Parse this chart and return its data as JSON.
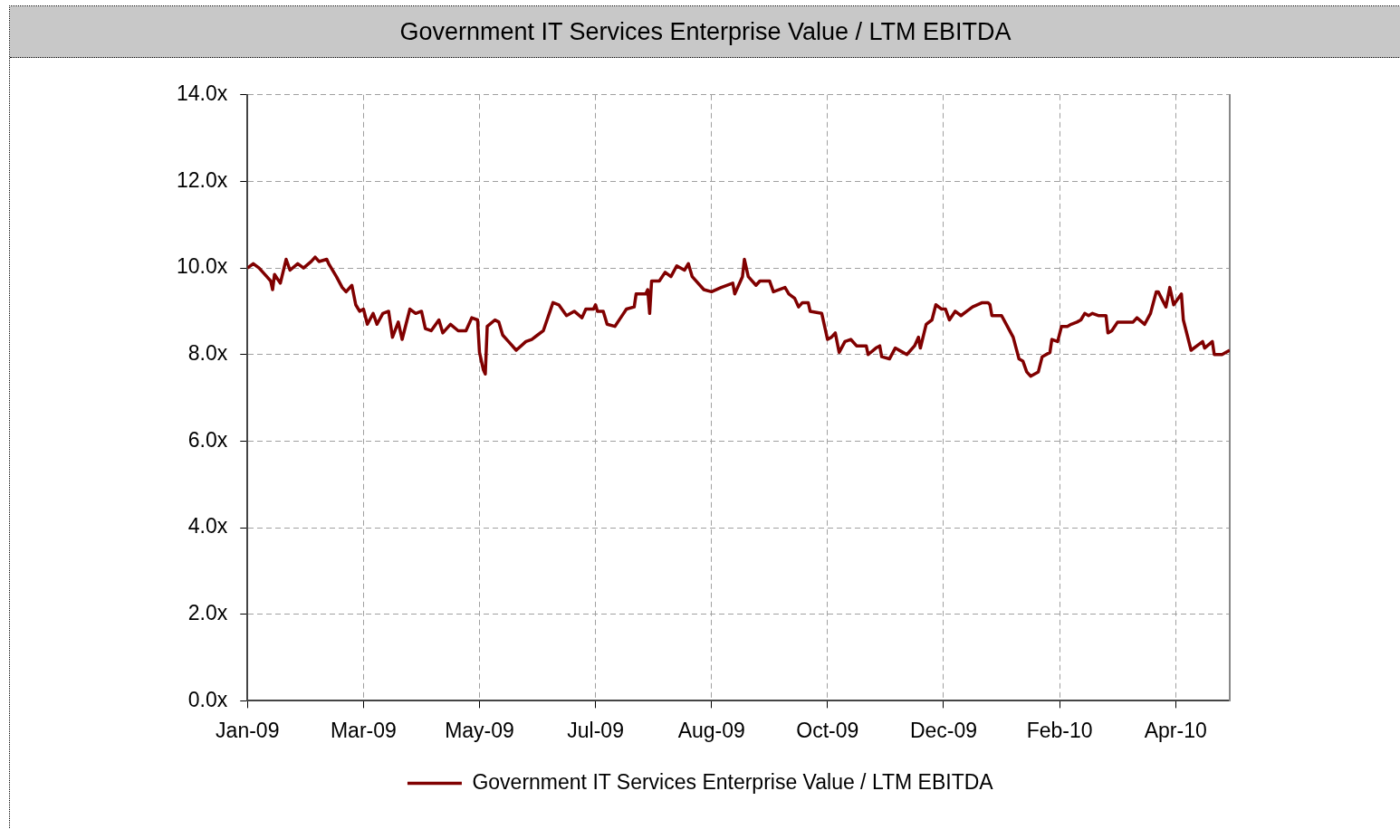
{
  "chart_data": {
    "type": "line",
    "title": "Government IT Services Enterprise Value / LTM EBITDA",
    "x": [
      "2009-01-02",
      "2009-01-05",
      "2009-01-08",
      "2009-01-12",
      "2009-01-14",
      "2009-01-15",
      "2009-01-16",
      "2009-01-19",
      "2009-01-22",
      "2009-01-24",
      "2009-01-28",
      "2009-01-31",
      "2009-02-04",
      "2009-02-06",
      "2009-02-08",
      "2009-02-12",
      "2009-02-13",
      "2009-02-17",
      "2009-02-20",
      "2009-02-22",
      "2009-02-25",
      "2009-02-27",
      "2009-03-01",
      "2009-03-03",
      "2009-03-05",
      "2009-03-08",
      "2009-03-10",
      "2009-03-13",
      "2009-03-16",
      "2009-03-18",
      "2009-03-21",
      "2009-03-23",
      "2009-03-27",
      "2009-03-30",
      "2009-04-02",
      "2009-04-04",
      "2009-04-07",
      "2009-04-11",
      "2009-04-13",
      "2009-04-17",
      "2009-04-21",
      "2009-04-25",
      "2009-04-28",
      "2009-05-01",
      "2009-05-02",
      "2009-05-04",
      "2009-05-05",
      "2009-05-06",
      "2009-05-10",
      "2009-05-12",
      "2009-05-14",
      "2009-05-17",
      "2009-05-21",
      "2009-05-26",
      "2009-05-29",
      "2009-06-01",
      "2009-06-04",
      "2009-06-09",
      "2009-06-12",
      "2009-06-16",
      "2009-06-20",
      "2009-06-24",
      "2009-06-26",
      "2009-06-30",
      "2009-07-01",
      "2009-07-02",
      "2009-07-05",
      "2009-07-07",
      "2009-07-11",
      "2009-07-14",
      "2009-07-17",
      "2009-07-21",
      "2009-07-22",
      "2009-07-27",
      "2009-07-28",
      "2009-07-29",
      "2009-07-30",
      "2009-08-03",
      "2009-08-06",
      "2009-08-09",
      "2009-08-12",
      "2009-08-16",
      "2009-08-18",
      "2009-08-20",
      "2009-08-26",
      "2009-08-30",
      "2009-09-04",
      "2009-09-10",
      "2009-09-11",
      "2009-09-15",
      "2009-09-16",
      "2009-09-18",
      "2009-09-22",
      "2009-09-24",
      "2009-09-29",
      "2009-10-01",
      "2009-10-07",
      "2009-10-09",
      "2009-10-12",
      "2009-10-14",
      "2009-10-16",
      "2009-10-19",
      "2009-10-20",
      "2009-10-26",
      "2009-10-29",
      "2009-10-31",
      "2009-11-02",
      "2009-11-04",
      "2009-11-07",
      "2009-11-10",
      "2009-11-13",
      "2009-11-18",
      "2009-11-19",
      "2009-11-23",
      "2009-11-25",
      "2009-11-26",
      "2009-11-30",
      "2009-12-03",
      "2009-12-07",
      "2009-12-09",
      "2009-12-13",
      "2009-12-15",
      "2009-12-16",
      "2009-12-19",
      "2009-12-22",
      "2009-12-24",
      "2009-12-27",
      "2009-12-29",
      "2009-12-31",
      "2010-01-03",
      "2010-01-06",
      "2010-01-09",
      "2010-01-12",
      "2010-01-17",
      "2010-01-20",
      "2010-01-21",
      "2010-01-22",
      "2010-01-27",
      "2010-01-30",
      "2010-02-02",
      "2010-02-05",
      "2010-02-07",
      "2010-02-09",
      "2010-02-11",
      "2010-02-15",
      "2010-02-17",
      "2010-02-21",
      "2010-02-22",
      "2010-02-25",
      "2010-02-27",
      "2010-03-02",
      "2010-03-04",
      "2010-03-07",
      "2010-03-09",
      "2010-03-11",
      "2010-03-13",
      "2010-03-15",
      "2010-03-18",
      "2010-03-22",
      "2010-03-23",
      "2010-03-25",
      "2010-03-28",
      "2010-04-05",
      "2010-04-07",
      "2010-04-11",
      "2010-04-14",
      "2010-04-17",
      "2010-04-18",
      "2010-04-22",
      "2010-04-24",
      "2010-04-26",
      "2010-04-30",
      "2010-05-01",
      "2010-05-05",
      "2010-05-11",
      "2010-05-12",
      "2010-05-16",
      "2010-05-17",
      "2010-05-21",
      "2010-05-25"
    ],
    "series": [
      {
        "name": "Government IT Services Enterprise Value / LTM EBITDA",
        "color": "#800000",
        "values": [
          10.0,
          10.1,
          10.0,
          9.8,
          9.7,
          9.5,
          9.85,
          9.65,
          10.2,
          9.95,
          10.1,
          10.0,
          10.15,
          10.25,
          10.15,
          10.2,
          10.1,
          9.8,
          9.55,
          9.45,
          9.6,
          9.15,
          9.0,
          9.05,
          8.7,
          8.95,
          8.7,
          8.95,
          9.0,
          8.4,
          8.75,
          8.35,
          9.05,
          8.95,
          9.0,
          8.6,
          8.55,
          8.8,
          8.5,
          8.7,
          8.55,
          8.55,
          8.85,
          8.8,
          8.05,
          7.65,
          7.55,
          8.65,
          8.8,
          8.75,
          8.45,
          8.3,
          8.1,
          8.3,
          8.35,
          8.45,
          8.55,
          9.2,
          9.15,
          8.9,
          9.0,
          8.85,
          9.05,
          9.05,
          9.15,
          9.0,
          9.0,
          8.7,
          8.65,
          8.85,
          9.05,
          9.1,
          9.4,
          9.4,
          9.5,
          8.95,
          9.7,
          9.7,
          9.9,
          9.8,
          10.05,
          9.95,
          10.1,
          9.8,
          9.5,
          9.45,
          9.55,
          9.65,
          9.4,
          9.8,
          10.2,
          9.8,
          9.6,
          9.7,
          9.7,
          9.45,
          9.55,
          9.4,
          9.3,
          9.1,
          9.2,
          9.2,
          9.0,
          8.95,
          8.35,
          8.4,
          8.5,
          8.05,
          8.3,
          8.35,
          8.2,
          8.2,
          8.0,
          8.15,
          8.2,
          7.95,
          7.9,
          8.15,
          8.05,
          8.0,
          8.2,
          8.4,
          8.15,
          8.7,
          8.8,
          9.15,
          9.05,
          9.05,
          8.8,
          9.0,
          8.9,
          9.0,
          9.1,
          9.2,
          9.2,
          9.15,
          8.9,
          8.9,
          8.65,
          8.4,
          7.9,
          7.85,
          7.6,
          7.5,
          7.6,
          7.95,
          8.05,
          8.35,
          8.3,
          8.65,
          8.65,
          8.7,
          8.75,
          8.8,
          8.95,
          8.9,
          8.95,
          8.9,
          8.9,
          8.5,
          8.55,
          8.75,
          8.75,
          8.85,
          8.7,
          8.95,
          9.45,
          9.45,
          9.1,
          9.55,
          9.15,
          9.4,
          8.8,
          8.1,
          8.3,
          8.15,
          8.3,
          8.0,
          8.0,
          8.1
        ]
      }
    ],
    "xlim": [
      "2009-01-02",
      "2010-05-25"
    ],
    "xticks": [
      {
        "value": "2009-01-02",
        "label": "Jan-09"
      },
      {
        "value": "2009-03-03",
        "label": "Mar-09"
      },
      {
        "value": "2009-05-02",
        "label": "May-09"
      },
      {
        "value": "2009-07-01",
        "label": "Jul-09"
      },
      {
        "value": "2009-08-30",
        "label": "Aug-09"
      },
      {
        "value": "2009-10-29",
        "label": "Oct-09"
      },
      {
        "value": "2009-12-28",
        "label": "Dec-09"
      },
      {
        "value": "2010-02-26",
        "label": "Feb-10"
      },
      {
        "value": "2010-04-27",
        "label": "Apr-10"
      }
    ],
    "ylim": [
      0,
      14
    ],
    "yticks": [
      {
        "value": 0,
        "label": "0.0x"
      },
      {
        "value": 2,
        "label": "2.0x"
      },
      {
        "value": 4,
        "label": "4.0x"
      },
      {
        "value": 6,
        "label": "6.0x"
      },
      {
        "value": 8,
        "label": "8.0x"
      },
      {
        "value": 10,
        "label": "10.0x"
      },
      {
        "value": 12,
        "label": "12.0x"
      },
      {
        "value": 14,
        "label": "14.0x"
      }
    ],
    "grid": true,
    "legend": "bottom",
    "marker": "none",
    "line_style": "solid"
  }
}
